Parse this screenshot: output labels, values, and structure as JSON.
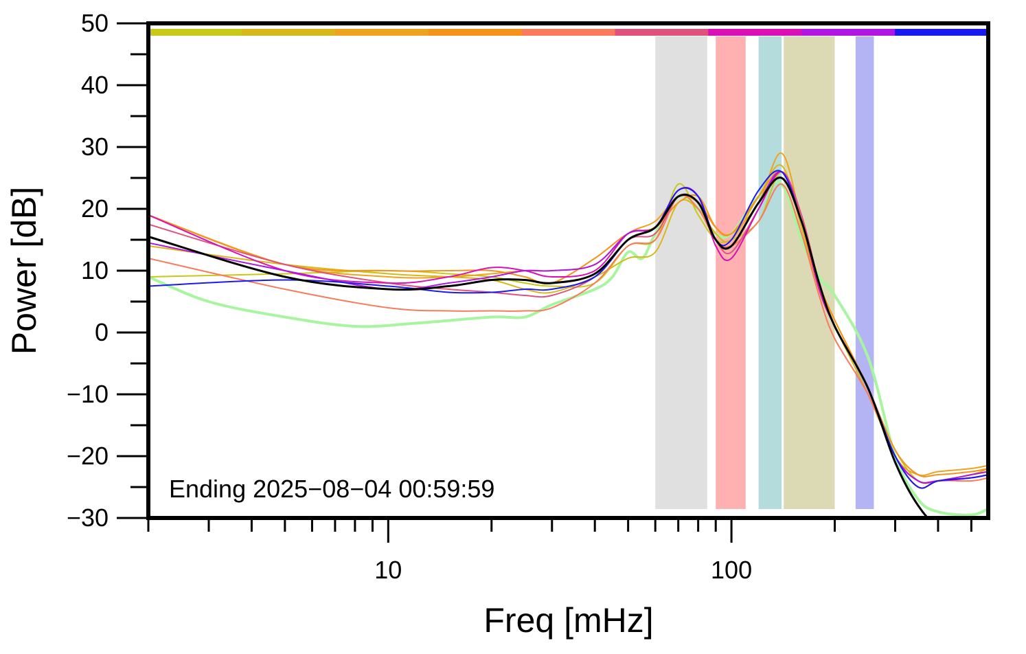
{
  "chart_data": {
    "type": "line",
    "xlabel": "Freq [mHz]",
    "ylabel": "Power [dB]",
    "x_scale": "log",
    "xlim": [
      2,
      560
    ],
    "ylim": [
      -30,
      50
    ],
    "x_tick_labels": [
      "10",
      "100"
    ],
    "y_tick_labels": [
      "50",
      "40",
      "30",
      "20",
      "10",
      "0",
      "−10",
      "−20",
      "−30"
    ],
    "annotation": "Ending 2025−08−04 00:59:59",
    "grid": false,
    "legend": "none",
    "top_color_strip": [
      "#c8c818",
      "#d8b818",
      "#eea21e",
      "#f4921a",
      "#fa7a5c",
      "#e0527e",
      "#da10b6",
      "#b016e2",
      "#1a1af0"
    ],
    "bands": [
      {
        "x0": 60,
        "x1": 85,
        "color": "#e0e0e0"
      },
      {
        "x0": 90,
        "x1": 110,
        "color": "#ffb0b0"
      },
      {
        "x0": 120,
        "x1": 140,
        "color": "#b4dcdc"
      },
      {
        "x0": 142,
        "x1": 200,
        "color": "#dcdab4"
      },
      {
        "x0": 230,
        "x1": 260,
        "color": "#b4b4f4"
      }
    ],
    "series": [
      {
        "color": "#a8f5a0",
        "width": 4,
        "points": [
          [
            2,
            9
          ],
          [
            3,
            5
          ],
          [
            5,
            2.5
          ],
          [
            8,
            1
          ],
          [
            12,
            1.5
          ],
          [
            20,
            2.5
          ],
          [
            25,
            2.5
          ],
          [
            30,
            4.5
          ],
          [
            40,
            7
          ],
          [
            45,
            9
          ],
          [
            50,
            13
          ],
          [
            55,
            12
          ],
          [
            60,
            16
          ],
          [
            70,
            22
          ],
          [
            80,
            20
          ],
          [
            90,
            16
          ],
          [
            100,
            16
          ],
          [
            120,
            22
          ],
          [
            140,
            24
          ],
          [
            160,
            15
          ],
          [
            180,
            9
          ],
          [
            200,
            6
          ],
          [
            250,
            -4
          ],
          [
            300,
            -20
          ],
          [
            350,
            -27
          ],
          [
            400,
            -29
          ],
          [
            500,
            -29.5
          ],
          [
            560,
            -28.5
          ]
        ]
      },
      {
        "color": "#c8c818",
        "width": 2,
        "points": [
          [
            2,
            9
          ],
          [
            5,
            9.5
          ],
          [
            10,
            10
          ],
          [
            15,
            9.5
          ],
          [
            20,
            9
          ],
          [
            25,
            8
          ],
          [
            30,
            7.5
          ],
          [
            40,
            8
          ],
          [
            50,
            14
          ],
          [
            60,
            15
          ],
          [
            70,
            24
          ],
          [
            80,
            19
          ],
          [
            90,
            15
          ],
          [
            100,
            15
          ],
          [
            120,
            18
          ],
          [
            140,
            26
          ],
          [
            160,
            18
          ],
          [
            180,
            8
          ],
          [
            200,
            2
          ],
          [
            250,
            -9
          ],
          [
            300,
            -19
          ],
          [
            350,
            -24
          ],
          [
            400,
            -24
          ],
          [
            500,
            -23
          ],
          [
            560,
            -22.5
          ]
        ]
      },
      {
        "color": "#d8b818",
        "width": 2,
        "points": [
          [
            2,
            14
          ],
          [
            5,
            11
          ],
          [
            10,
            9.5
          ],
          [
            15,
            9
          ],
          [
            20,
            8.5
          ],
          [
            25,
            7
          ],
          [
            30,
            6.5
          ],
          [
            40,
            9
          ],
          [
            50,
            12
          ],
          [
            60,
            13
          ],
          [
            70,
            21
          ],
          [
            80,
            20
          ],
          [
            90,
            16
          ],
          [
            100,
            15
          ],
          [
            120,
            22
          ],
          [
            140,
            27
          ],
          [
            160,
            17
          ],
          [
            180,
            7
          ],
          [
            200,
            1
          ],
          [
            250,
            -10
          ],
          [
            300,
            -20
          ],
          [
            350,
            -25
          ],
          [
            400,
            -24
          ],
          [
            500,
            -23
          ],
          [
            560,
            -22
          ]
        ]
      },
      {
        "color": "#eea21e",
        "width": 2,
        "points": [
          [
            2,
            19
          ],
          [
            5,
            11
          ],
          [
            10,
            9
          ],
          [
            15,
            9
          ],
          [
            20,
            9.5
          ],
          [
            25,
            10
          ],
          [
            30,
            10
          ],
          [
            40,
            11
          ],
          [
            50,
            16
          ],
          [
            60,
            18
          ],
          [
            70,
            22
          ],
          [
            80,
            21
          ],
          [
            90,
            17
          ],
          [
            100,
            16
          ],
          [
            120,
            21
          ],
          [
            140,
            29
          ],
          [
            160,
            18
          ],
          [
            180,
            8
          ],
          [
            200,
            2
          ],
          [
            250,
            -9
          ],
          [
            300,
            -20
          ],
          [
            350,
            -23
          ],
          [
            400,
            -22.5
          ],
          [
            500,
            -22
          ],
          [
            560,
            -21.5
          ]
        ]
      },
      {
        "color": "#f4921a",
        "width": 2,
        "points": [
          [
            2,
            19
          ],
          [
            5,
            11
          ],
          [
            10,
            10
          ],
          [
            15,
            10
          ],
          [
            20,
            10
          ],
          [
            25,
            9
          ],
          [
            30,
            8
          ],
          [
            40,
            12
          ],
          [
            50,
            16
          ],
          [
            60,
            17
          ],
          [
            70,
            21
          ],
          [
            80,
            22
          ],
          [
            90,
            17
          ],
          [
            100,
            16
          ],
          [
            120,
            22
          ],
          [
            140,
            26
          ],
          [
            160,
            18
          ],
          [
            180,
            8
          ],
          [
            200,
            2
          ],
          [
            250,
            -9
          ],
          [
            300,
            -19
          ],
          [
            350,
            -23
          ],
          [
            400,
            -23
          ],
          [
            500,
            -22.5
          ],
          [
            560,
            -22
          ]
        ]
      },
      {
        "color": "#fa7a5c",
        "width": 2,
        "points": [
          [
            2,
            12
          ],
          [
            5,
            7
          ],
          [
            10,
            4
          ],
          [
            15,
            3.5
          ],
          [
            20,
            3.5
          ],
          [
            25,
            3.5
          ],
          [
            30,
            4
          ],
          [
            40,
            8
          ],
          [
            50,
            14
          ],
          [
            60,
            15
          ],
          [
            70,
            22
          ],
          [
            80,
            20
          ],
          [
            90,
            15
          ],
          [
            100,
            14
          ],
          [
            120,
            18
          ],
          [
            140,
            24
          ],
          [
            160,
            16
          ],
          [
            180,
            6
          ],
          [
            200,
            -1
          ],
          [
            250,
            -10
          ],
          [
            300,
            -20
          ],
          [
            350,
            -25
          ],
          [
            400,
            -24
          ],
          [
            500,
            -24
          ],
          [
            560,
            -23.5
          ]
        ]
      },
      {
        "color": "#e0527e",
        "width": 2,
        "points": [
          [
            2,
            17.5
          ],
          [
            5,
            11
          ],
          [
            10,
            8
          ],
          [
            15,
            7
          ],
          [
            20,
            6.5
          ],
          [
            25,
            6
          ],
          [
            30,
            6
          ],
          [
            40,
            9
          ],
          [
            50,
            15
          ],
          [
            60,
            16
          ],
          [
            70,
            22
          ],
          [
            80,
            21
          ],
          [
            90,
            15
          ],
          [
            100,
            13
          ],
          [
            120,
            20
          ],
          [
            140,
            26
          ],
          [
            160,
            19
          ],
          [
            180,
            8
          ],
          [
            200,
            1
          ],
          [
            250,
            -9
          ],
          [
            300,
            -20
          ],
          [
            350,
            -24
          ],
          [
            400,
            -24
          ],
          [
            500,
            -23.5
          ],
          [
            560,
            -23
          ]
        ]
      },
      {
        "color": "#da10b6",
        "width": 2,
        "points": [
          [
            2,
            19
          ],
          [
            5,
            10
          ],
          [
            10,
            8
          ],
          [
            15,
            9
          ],
          [
            20,
            10.5
          ],
          [
            25,
            10
          ],
          [
            30,
            9
          ],
          [
            40,
            10
          ],
          [
            50,
            16
          ],
          [
            60,
            17
          ],
          [
            70,
            23
          ],
          [
            80,
            22
          ],
          [
            90,
            14
          ],
          [
            100,
            12
          ],
          [
            120,
            20
          ],
          [
            140,
            26
          ],
          [
            160,
            18
          ],
          [
            180,
            7
          ],
          [
            200,
            1
          ],
          [
            250,
            -9
          ],
          [
            300,
            -20
          ],
          [
            350,
            -24
          ],
          [
            400,
            -24
          ],
          [
            500,
            -23.5
          ],
          [
            560,
            -23
          ]
        ]
      },
      {
        "color": "#b016e2",
        "width": 2,
        "points": [
          [
            2,
            14.5
          ],
          [
            5,
            10
          ],
          [
            10,
            7
          ],
          [
            15,
            8
          ],
          [
            20,
            9
          ],
          [
            25,
            10
          ],
          [
            30,
            10
          ],
          [
            40,
            11
          ],
          [
            50,
            16
          ],
          [
            60,
            17
          ],
          [
            70,
            23
          ],
          [
            80,
            22
          ],
          [
            90,
            15
          ],
          [
            100,
            14
          ],
          [
            120,
            21
          ],
          [
            140,
            26
          ],
          [
            160,
            18
          ],
          [
            180,
            8
          ],
          [
            200,
            1
          ],
          [
            250,
            -9
          ],
          [
            300,
            -20
          ],
          [
            350,
            -24
          ],
          [
            400,
            -24
          ],
          [
            500,
            -23
          ],
          [
            560,
            -22.5
          ]
        ]
      },
      {
        "color": "#1a1af0",
        "width": 2,
        "points": [
          [
            2,
            7.5
          ],
          [
            5,
            8.5
          ],
          [
            10,
            7.5
          ],
          [
            15,
            6.5
          ],
          [
            20,
            6.5
          ],
          [
            25,
            7
          ],
          [
            30,
            7
          ],
          [
            40,
            9
          ],
          [
            50,
            15
          ],
          [
            60,
            17
          ],
          [
            70,
            23
          ],
          [
            80,
            22
          ],
          [
            90,
            15
          ],
          [
            100,
            15
          ],
          [
            120,
            23
          ],
          [
            140,
            26
          ],
          [
            160,
            18
          ],
          [
            180,
            8
          ],
          [
            200,
            1
          ],
          [
            250,
            -9
          ],
          [
            300,
            -20
          ],
          [
            350,
            -25
          ],
          [
            400,
            -24
          ],
          [
            500,
            -23.5
          ],
          [
            560,
            -23
          ]
        ]
      },
      {
        "color": "#000000",
        "width": 3,
        "points": [
          [
            2,
            15.5
          ],
          [
            5,
            9
          ],
          [
            10,
            7
          ],
          [
            15,
            7.5
          ],
          [
            20,
            8.5
          ],
          [
            25,
            8.5
          ],
          [
            30,
            8
          ],
          [
            40,
            9.5
          ],
          [
            50,
            15
          ],
          [
            60,
            17
          ],
          [
            70,
            22
          ],
          [
            80,
            21
          ],
          [
            90,
            15
          ],
          [
            100,
            14
          ],
          [
            120,
            21
          ],
          [
            140,
            25
          ],
          [
            160,
            18
          ],
          [
            180,
            8
          ],
          [
            200,
            1
          ],
          [
            250,
            -9
          ],
          [
            300,
            -21
          ],
          [
            350,
            -28
          ],
          [
            400,
            -31
          ],
          [
            500,
            -31
          ],
          [
            560,
            -31
          ]
        ]
      }
    ]
  }
}
